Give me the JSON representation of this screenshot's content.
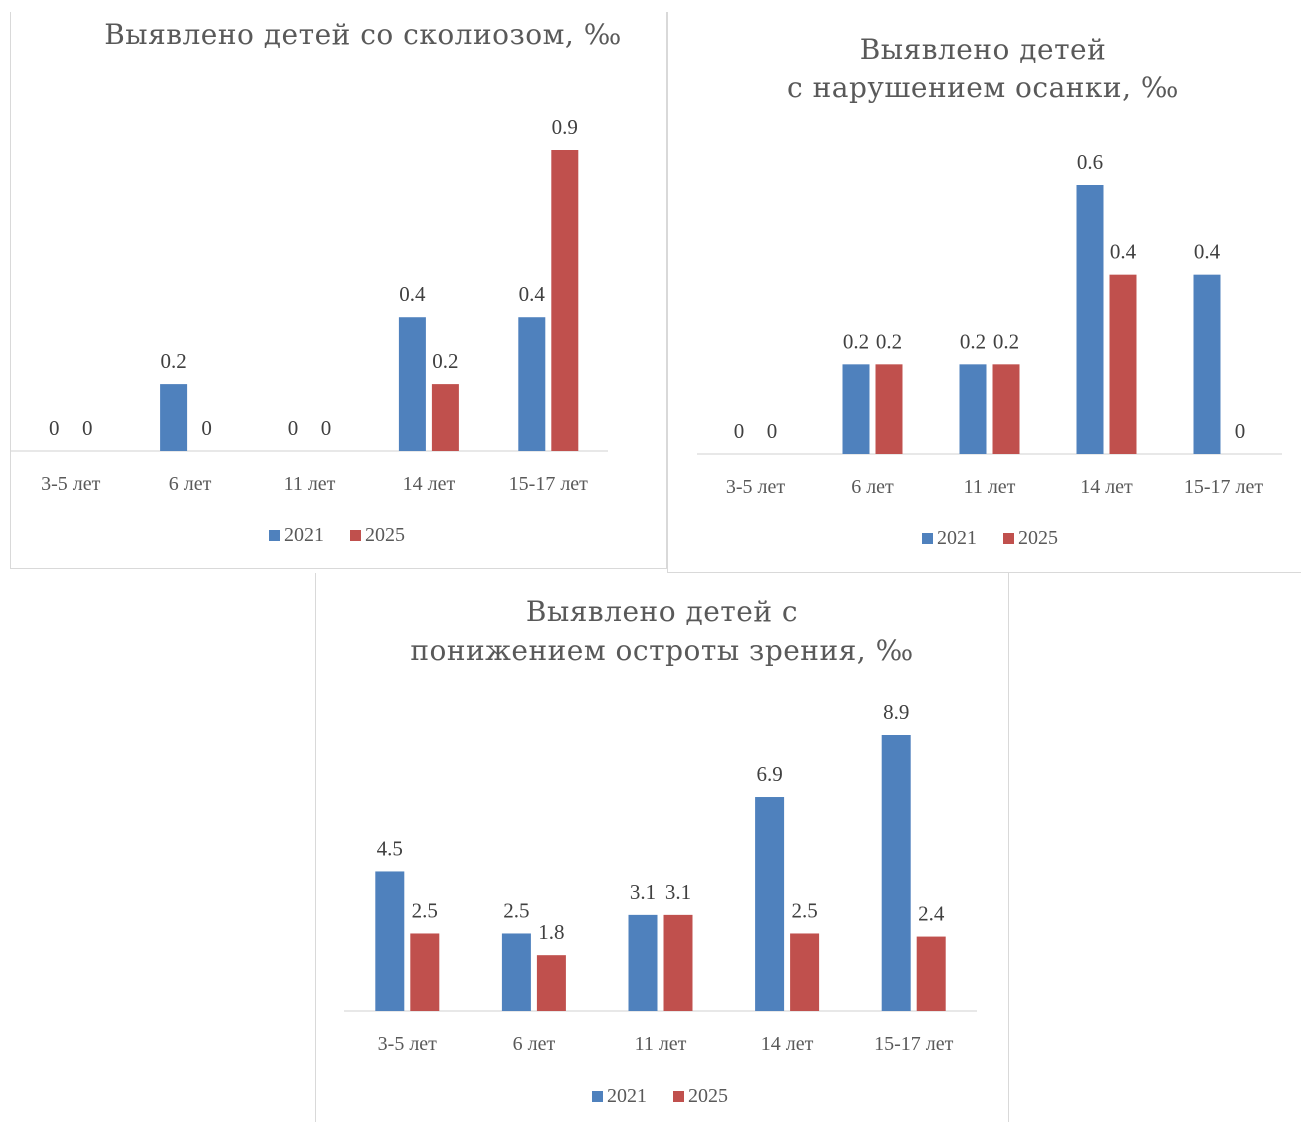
{
  "chart_data": [
    {
      "type": "bar",
      "title": "Выявлено детей со сколиозом, ‰",
      "categories": [
        "3-5 лет",
        "6 лет",
        "11 лет",
        "14 лет",
        "15-17 лет"
      ],
      "series": [
        {
          "name": "2021",
          "values": [
            0,
            0.2,
            0,
            0.4,
            0.4
          ],
          "labels": [
            "0",
            "0.2",
            "0",
            "0.4",
            "0.4"
          ]
        },
        {
          "name": "2025",
          "values": [
            0,
            0,
            0,
            0.2,
            0.9
          ],
          "labels": [
            "0",
            "0",
            "0",
            "0.2",
            "0.9"
          ]
        }
      ],
      "ylim": [
        0,
        0.9
      ],
      "grid": false,
      "legend": "bottom"
    },
    {
      "type": "bar",
      "title": "Выявлено детей с нарушением осанки, ‰",
      "categories": [
        "3-5 лет",
        "6 лет",
        "11 лет",
        "14 лет",
        "15-17 лет"
      ],
      "series": [
        {
          "name": "2021",
          "values": [
            0,
            0.2,
            0.2,
            0.6,
            0.4
          ],
          "labels": [
            "0",
            "0.2",
            "0.2",
            "0.6",
            "0.4"
          ]
        },
        {
          "name": "2025",
          "values": [
            0,
            0.2,
            0.2,
            0.4,
            0
          ],
          "labels": [
            "0",
            "0.2",
            "0.2",
            "0.4",
            "0"
          ]
        }
      ],
      "ylim": [
        0,
        0.6
      ],
      "grid": false,
      "legend": "bottom"
    },
    {
      "type": "bar",
      "title": "Выявлено детей с понижением остроты зрения, ‰",
      "categories": [
        "3-5 лет",
        "6 лет",
        "11 лет",
        "14 лет",
        "15-17 лет"
      ],
      "series": [
        {
          "name": "2021",
          "values": [
            4.5,
            2.5,
            3.1,
            6.9,
            8.9
          ],
          "labels": [
            "4.5",
            "2.5",
            "3.1",
            "6.9",
            "8.9"
          ]
        },
        {
          "name": "2025",
          "values": [
            2.5,
            1.8,
            3.1,
            2.5,
            2.4
          ],
          "labels": [
            "2.5",
            "1.8",
            "3.1",
            "2.5",
            "2.4"
          ]
        }
      ],
      "ylim": [
        0,
        8.9
      ],
      "grid": false,
      "legend": "bottom"
    }
  ],
  "colors": {
    "series_2021": "#4f81bd",
    "series_2025": "#c0504d"
  }
}
